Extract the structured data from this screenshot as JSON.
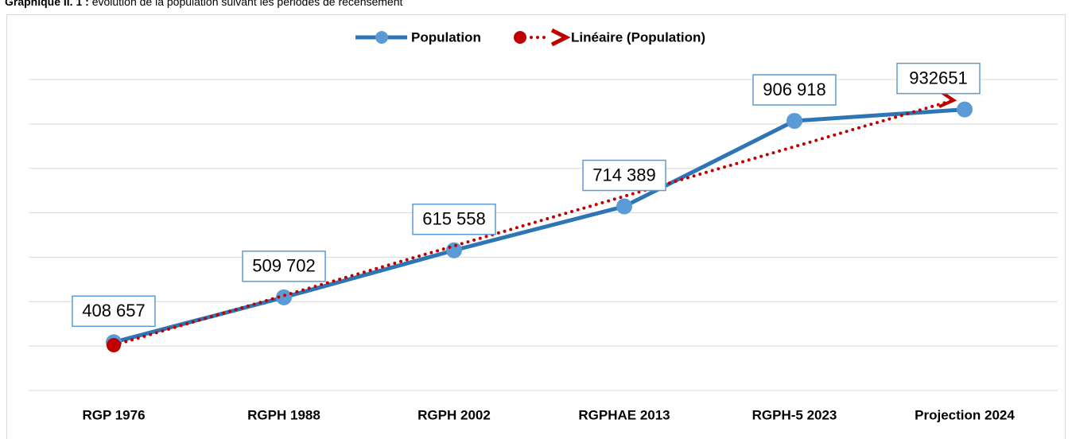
{
  "caption_label": "Graphique II. 1 :",
  "caption_text": "évolution de la population suivant les périodes de recensement",
  "chart_data": {
    "type": "line",
    "categories": [
      "RGP 1976",
      "RGPH 1988",
      "RGPH 2002",
      "RGPHAE 2013",
      "RGPH-5 2023",
      "Projection 2024"
    ],
    "series": [
      {
        "name": "Population",
        "color": "#2e75b6",
        "marker_color": "#5b9bd5",
        "values": [
          408657,
          509702,
          615558,
          714389,
          906918,
          932651
        ],
        "value_labels": [
          "408 657",
          "509 702",
          "615 558",
          "714 389",
          "906 918",
          "932651"
        ]
      }
    ],
    "trendline": {
      "name": "Linéaire (Population)",
      "color": "#c00000"
    },
    "ylim": [
      300000,
      1000000
    ],
    "yticks": [
      300000,
      400000,
      500000,
      600000,
      700000,
      800000,
      900000,
      1000000
    ],
    "grid": true,
    "legend": "top"
  }
}
